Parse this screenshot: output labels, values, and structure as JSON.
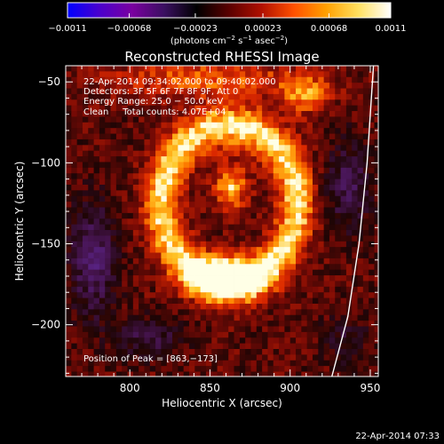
{
  "chart_data": {
    "type": "heatmap",
    "title": "Reconstructed RHESSI Image",
    "xlabel": "Heliocentric X (arcsec)",
    "ylabel": "Heliocentric Y (arcsec)",
    "xlim": [
      760,
      955
    ],
    "ylim": [
      -232,
      -40
    ],
    "x_ticks": [
      {
        "value": 800,
        "label": "800"
      },
      {
        "value": 850,
        "label": "850"
      },
      {
        "value": 900,
        "label": "900"
      },
      {
        "value": 950,
        "label": "950"
      }
    ],
    "y_ticks": [
      {
        "value": -50,
        "label": "−50"
      },
      {
        "value": -100,
        "label": "−100"
      },
      {
        "value": -150,
        "label": "−150"
      },
      {
        "value": -200,
        "label": "−200"
      }
    ],
    "colorbar": {
      "min": -0.0011,
      "max": 0.0011,
      "ticks": [
        {
          "value": -0.0011,
          "label": "−0.0011"
        },
        {
          "value": -0.00068,
          "label": "−0.00068"
        },
        {
          "value": -0.00023,
          "label": "−0.00023"
        },
        {
          "value": 0.00023,
          "label": "0.00023"
        },
        {
          "value": 0.00068,
          "label": "0.00068"
        },
        {
          "value": 0.0011,
          "label": "0.0011"
        }
      ],
      "unit_label_main": "(photons cm",
      "unit_exp1": "−2",
      "unit_mid": " s",
      "unit_exp2": "−1",
      "unit_mid2": " asec",
      "unit_exp3": "−2",
      "unit_end": ")",
      "colors": [
        "#0000ff",
        "#4b00cc",
        "#7a00a0",
        "#3a1060",
        "#000000",
        "#5a0000",
        "#b01000",
        "#ff5000",
        "#ffa000",
        "#ffe060",
        "#ffffff"
      ]
    },
    "info_lines": [
      "22‑Apr‑2014 09:34:02.000 to 09:40:02.000",
      "Detectors: 3F 5F 6F 7F 8F 9F, Att 0",
      "Energy Range: 25.0 − 50.0 keV",
      "Clean     Total counts: 4.07E+04"
    ],
    "peak_label": "Position of Peak = [863,−173]",
    "peak": {
      "x": 863,
      "y": -173
    },
    "features": [
      {
        "shape": "ring",
        "cx": 862,
        "cy": -125,
        "rx": 42,
        "ry": 48,
        "width": 17,
        "value": 0.00085
      },
      {
        "shape": "ellipse",
        "cx": 848,
        "cy": -48,
        "rx": 58,
        "ry": 12,
        "value": 0.0005
      },
      {
        "shape": "ellipse",
        "cx": 909,
        "cy": -58,
        "rx": 15,
        "ry": 12,
        "value": 0.0006
      },
      {
        "shape": "ellipse",
        "cx": 860,
        "cy": -172,
        "rx": 22,
        "ry": 12,
        "value": 0.0011
      },
      {
        "shape": "ellipse",
        "cx": 863,
        "cy": -115,
        "rx": 10,
        "ry": 14,
        "value": 0.00075
      },
      {
        "shape": "ellipse",
        "cx": 777,
        "cy": -160,
        "rx": 14,
        "ry": 35,
        "value": -0.0006
      },
      {
        "shape": "ellipse",
        "cx": 937,
        "cy": -115,
        "rx": 14,
        "ry": 28,
        "value": -0.0005
      },
      {
        "shape": "ellipse",
        "cx": 935,
        "cy": -210,
        "rx": 14,
        "ry": 16,
        "value": -0.0003
      },
      {
        "shape": "ellipse",
        "cx": 812,
        "cy": -208,
        "rx": 22,
        "ry": 12,
        "value": -0.0004
      }
    ],
    "limb_arc": [
      {
        "x": 952,
        "y": -40
      },
      {
        "x": 948,
        "y": -100
      },
      {
        "x": 943,
        "y": -150
      },
      {
        "x": 936,
        "y": -195
      },
      {
        "x": 926,
        "y": -232
      }
    ],
    "grid": false
  },
  "footer": {
    "timestamp": "22‑Apr‑2014 07:33"
  }
}
